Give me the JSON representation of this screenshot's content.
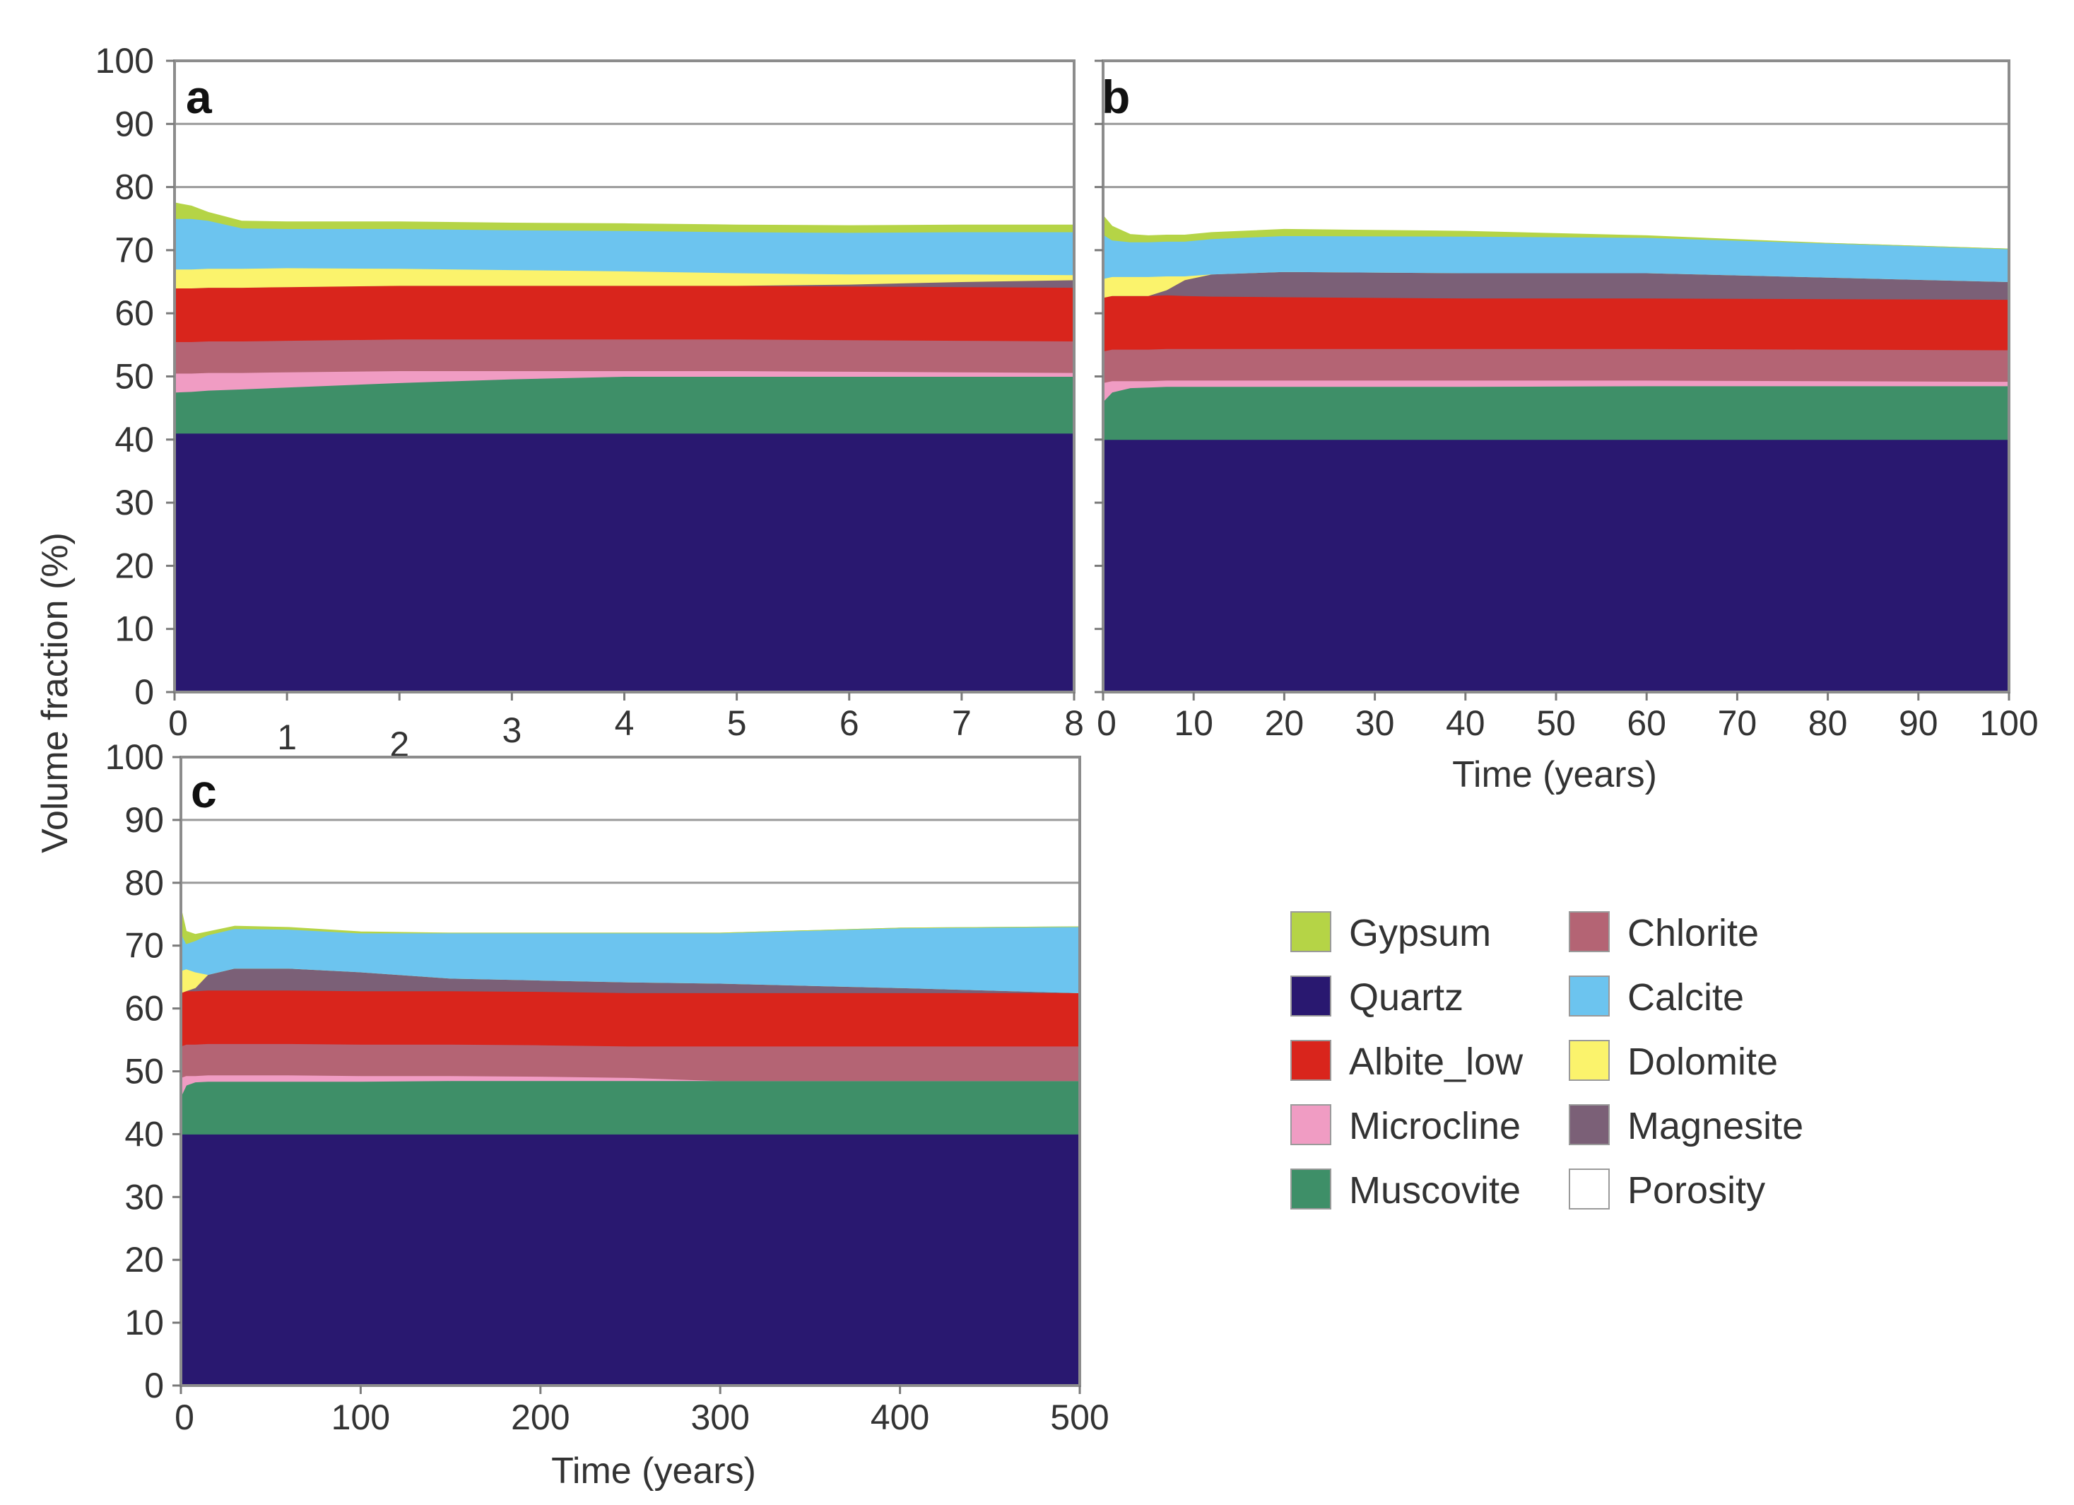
{
  "figure": {
    "ylabel": "Volume fraction (%)"
  },
  "legend": {
    "entries": [
      {
        "name": "Gypsum",
        "color": "#b5d446"
      },
      {
        "name": "Quartz",
        "color": "#291870"
      },
      {
        "name": "Albite_low",
        "color": "#d9251c"
      },
      {
        "name": "Microcline",
        "color": "#f09cc3"
      },
      {
        "name": "Muscovite",
        "color": "#3e8f68"
      },
      {
        "name": "Chlorite",
        "color": "#b46474"
      },
      {
        "name": "Calcite",
        "color": "#6cc4ef"
      },
      {
        "name": "Dolomite",
        "color": "#fbf36c"
      },
      {
        "name": "Magnesite",
        "color": "#7b6077"
      },
      {
        "name": "Porosity",
        "color": "#ffffff"
      }
    ]
  },
  "chart_data": [
    {
      "type": "area",
      "stacked": true,
      "panel": "a",
      "xlabel": "",
      "ylabel": "Volume fraction (%)",
      "xlim": [
        0,
        8
      ],
      "ylim": [
        0,
        100
      ],
      "xticks": [
        0,
        1,
        2,
        3,
        4,
        5,
        6,
        7,
        8
      ],
      "yticks": [
        0,
        10,
        20,
        30,
        40,
        50,
        60,
        70,
        80,
        90,
        100
      ],
      "grid_y": [
        80,
        90
      ],
      "x": [
        0,
        0.15,
        0.3,
        0.6,
        1,
        2,
        3,
        4,
        5,
        6,
        7,
        8
      ],
      "series": [
        {
          "name": "Quartz",
          "values": [
            41,
            41,
            41,
            41,
            41,
            41,
            41,
            41,
            41,
            41,
            41,
            41
          ]
        },
        {
          "name": "Muscovite",
          "values": [
            6.5,
            6.6,
            6.8,
            7,
            7.3,
            8,
            8.6,
            9,
            9,
            9,
            9,
            9
          ]
        },
        {
          "name": "Microcline",
          "values": [
            3,
            2.9,
            2.8,
            2.6,
            2.4,
            1.9,
            1.3,
            0.9,
            0.9,
            0.8,
            0.7,
            0.6
          ]
        },
        {
          "name": "Chlorite",
          "values": [
            5,
            5,
            5,
            5,
            5,
            5,
            5,
            5,
            5,
            5,
            5,
            5
          ]
        },
        {
          "name": "Albite_low",
          "values": [
            8.5,
            8.5,
            8.5,
            8.5,
            8.5,
            8.5,
            8.5,
            8.5,
            8.5,
            8.5,
            8.5,
            8.5
          ]
        },
        {
          "name": "Magnesite",
          "values": [
            0,
            0,
            0,
            0,
            0,
            0,
            0,
            0,
            0,
            0.3,
            0.8,
            1.2
          ]
        },
        {
          "name": "Dolomite",
          "values": [
            3,
            3,
            3,
            3,
            3,
            2.7,
            2.5,
            2.3,
            2,
            1.6,
            1.2,
            0.8
          ]
        },
        {
          "name": "Calcite",
          "values": [
            8,
            8,
            7.6,
            6.4,
            6.2,
            6.3,
            6.3,
            6.4,
            6.5,
            6.6,
            6.7,
            6.8
          ]
        },
        {
          "name": "Gypsum",
          "values": [
            2.5,
            2,
            1.3,
            1.1,
            1.1,
            1.1,
            1.1,
            1.1,
            1.1,
            1.1,
            1.1,
            1.1
          ]
        }
      ]
    },
    {
      "type": "area",
      "stacked": true,
      "panel": "b",
      "xlabel": "Time (years)",
      "ylabel": "",
      "xlim": [
        0,
        100
      ],
      "ylim": [
        0,
        100
      ],
      "xticks": [
        0,
        10,
        20,
        30,
        40,
        50,
        60,
        70,
        80,
        90,
        100
      ],
      "yticks": [
        0,
        10,
        20,
        30,
        40,
        50,
        60,
        70,
        80,
        90,
        100
      ],
      "grid_y": [
        80,
        90
      ],
      "x": [
        0,
        1,
        3,
        5,
        7,
        9,
        12,
        20,
        40,
        60,
        80,
        100
      ],
      "series": [
        {
          "name": "Quartz",
          "values": [
            40,
            40,
            40,
            40,
            40,
            40,
            40,
            40,
            40,
            40,
            40,
            40
          ]
        },
        {
          "name": "Muscovite",
          "values": [
            6,
            7.5,
            8.2,
            8.3,
            8.4,
            8.4,
            8.4,
            8.4,
            8.4,
            8.5,
            8.5,
            8.5
          ]
        },
        {
          "name": "Microcline",
          "values": [
            3,
            1.8,
            1.1,
            1.0,
            1.0,
            1.0,
            1.0,
            1.0,
            1.0,
            0.9,
            0.8,
            0.7
          ]
        },
        {
          "name": "Chlorite",
          "values": [
            5,
            5,
            5,
            5,
            5,
            5,
            5,
            5,
            5,
            5,
            5,
            5
          ]
        },
        {
          "name": "Albite_low",
          "values": [
            8.5,
            8.5,
            8.5,
            8.5,
            8.5,
            8.4,
            8.3,
            8.2,
            8,
            8,
            8,
            8
          ]
        },
        {
          "name": "Magnesite",
          "values": [
            0,
            0,
            0,
            0,
            0.8,
            2.5,
            3.5,
            4,
            4,
            4,
            3.4,
            2.8
          ]
        },
        {
          "name": "Dolomite",
          "values": [
            3,
            3,
            3,
            3,
            2.2,
            0.6,
            0,
            0,
            0,
            0,
            0,
            0
          ]
        },
        {
          "name": "Calcite",
          "values": [
            7,
            5.8,
            5.5,
            5.5,
            5.5,
            5.5,
            5.6,
            5.7,
            5.8,
            5.6,
            5.4,
            5.2
          ]
        },
        {
          "name": "Gypsum",
          "values": [
            3,
            2.2,
            1.2,
            1.0,
            1.0,
            1.0,
            1.0,
            1.0,
            0.8,
            0.3,
            0,
            0
          ]
        }
      ]
    },
    {
      "type": "area",
      "stacked": true,
      "panel": "c",
      "xlabel": "Time (years)",
      "ylabel": "",
      "xlim": [
        0,
        500
      ],
      "ylim": [
        0,
        100
      ],
      "xticks": [
        0,
        100,
        200,
        300,
        400,
        500
      ],
      "yticks": [
        0,
        10,
        20,
        30,
        40,
        50,
        60,
        70,
        80,
        90,
        100
      ],
      "grid_y": [
        80,
        90
      ],
      "x": [
        0,
        3,
        8,
        15,
        30,
        60,
        100,
        150,
        200,
        250,
        300,
        400,
        500
      ],
      "series": [
        {
          "name": "Quartz",
          "values": [
            40,
            40,
            40,
            40,
            40,
            40,
            40,
            40,
            40,
            40,
            40,
            40,
            40
          ]
        },
        {
          "name": "Muscovite",
          "values": [
            6,
            7.8,
            8.3,
            8.4,
            8.4,
            8.4,
            8.4,
            8.5,
            8.5,
            8.5,
            8.5,
            8.5,
            8.5
          ]
        },
        {
          "name": "Microcline",
          "values": [
            3,
            1.5,
            1.0,
            1.0,
            1.0,
            1.0,
            0.9,
            0.8,
            0.7,
            0.5,
            0,
            0,
            0
          ]
        },
        {
          "name": "Chlorite",
          "values": [
            5,
            5,
            5,
            5,
            5,
            5,
            5,
            5,
            5,
            5,
            5.5,
            5.5,
            5.5
          ]
        },
        {
          "name": "Albite_low",
          "values": [
            8.5,
            8.5,
            8.5,
            8.5,
            8.5,
            8.5,
            8.5,
            8.5,
            8.5,
            8.5,
            8.5,
            8.5,
            8.5
          ]
        },
        {
          "name": "Magnesite",
          "values": [
            0,
            0,
            0.5,
            2.5,
            3.5,
            3.5,
            3,
            2,
            1.8,
            1.7,
            1.5,
            0.8,
            0
          ]
        },
        {
          "name": "Dolomite",
          "values": [
            3.5,
            3.5,
            2.5,
            0,
            0,
            0,
            0,
            0,
            0,
            0,
            0,
            0,
            0
          ]
        },
        {
          "name": "Calcite",
          "values": [
            6,
            4,
            5,
            6.3,
            6.3,
            6.2,
            6.2,
            7.2,
            7.5,
            7.8,
            8,
            9.5,
            10.5
          ]
        },
        {
          "name": "Gypsum",
          "values": [
            4,
            2,
            1,
            0.5,
            0.4,
            0.3,
            0.2,
            0,
            0,
            0,
            0,
            0,
            0
          ]
        }
      ]
    }
  ]
}
